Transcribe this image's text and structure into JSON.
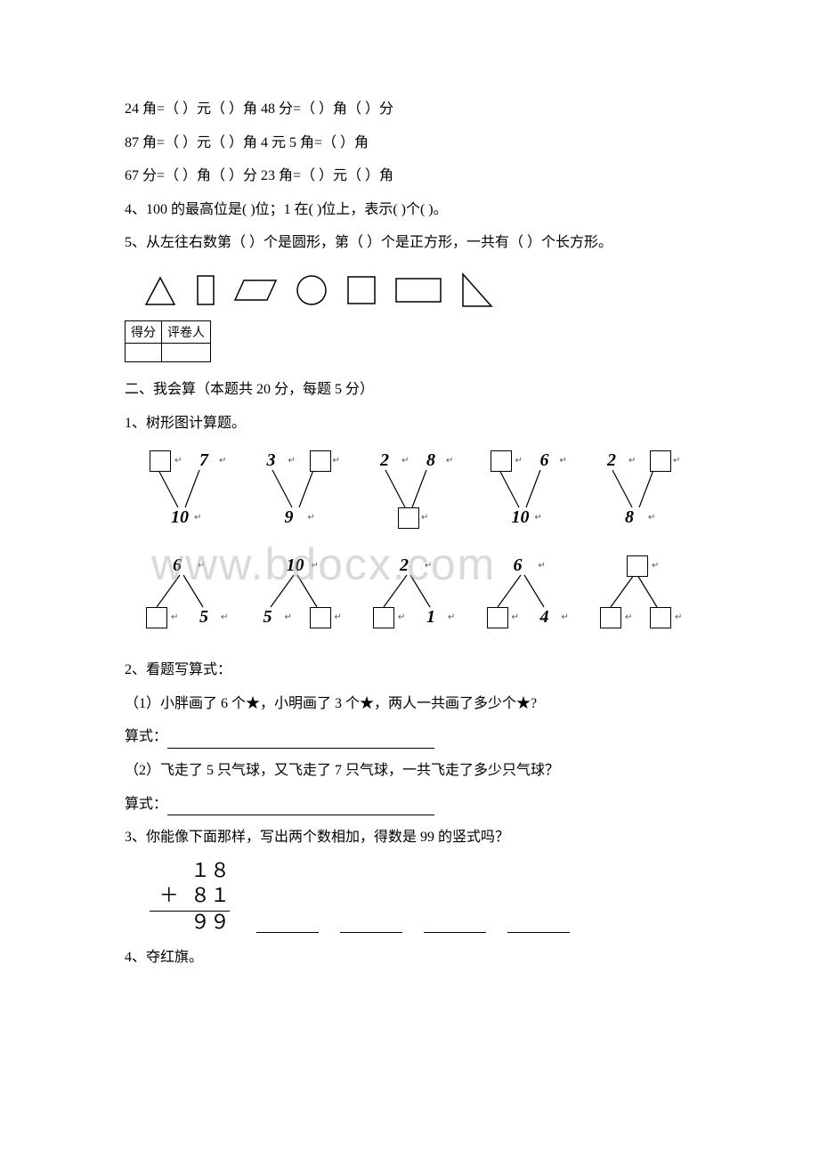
{
  "q3a": "24 角=（ ）元（ ）角 48 分=（ ）角（ ）分",
  "q3b": "87 角=（ ）元（ ）角 4 元 5 角=（ ）角",
  "q3c": "67 分=（ ）角（ ）分 23 角=（ ）元（ ）角",
  "q4": "4、100 的最高位是( )位；1 在( )位上，表示( )个( )。",
  "q5": "5、从左往右数第（ ）个是圆形，第（ ）个是正方形，一共有（ ）个长方形。",
  "score_labels": {
    "left": "得分",
    "right": "评卷人"
  },
  "section2_title": " 二、我会算（本题共 20 分，每题 5 分）",
  "s2q1": "1、树形图计算题。",
  "trees_row1": [
    {
      "tl": null,
      "tr": "7",
      "b": "10",
      "box_tl": true
    },
    {
      "tl": "3",
      "tr": null,
      "b": "9",
      "box_tr": true
    },
    {
      "tl": "2",
      "tr": "8",
      "b": null,
      "box_b": true
    },
    {
      "tl": null,
      "tr": "6",
      "b": "10",
      "box_tl": true
    },
    {
      "tl": "2",
      "tr": null,
      "b": "8",
      "box_tr": true
    }
  ],
  "trees_row2": [
    {
      "t": "6",
      "bl": null,
      "br": "5",
      "box_bl": true
    },
    {
      "t": "10",
      "bl": "5",
      "br": null,
      "box_br": true
    },
    {
      "t": "2",
      "bl": null,
      "br": "1",
      "box_bl": true
    },
    {
      "t": "6",
      "bl": null,
      "br": "4",
      "box_bl": true
    },
    {
      "t": null,
      "bl": null,
      "br": null,
      "box_t": true,
      "box_bl": true,
      "box_br": true
    }
  ],
  "s2q2": "2、看题写算式：",
  "s2q2_1": "（1）小胖画了 6 个★，小明画了 3 个★，两人一共画了多少个★?",
  "s2q2_eq": " 算式：",
  "s2q2_2": "（2）飞走了 5 只气球，又飞走了 7 只气球，一共飞走了多少只气球？",
  "s2q3": "3、你能像下面那样，写出两个数相加，得数是 99 的竖式吗？",
  "vcalc": {
    "l1": "１８",
    "l2": "＋ ８１",
    "l3": "９９"
  },
  "s2q4": "4、夺红旗。",
  "watermark": "www.bdocx.com",
  "shape_stroke": "#000000",
  "colors": {
    "bg": "#ffffff",
    "text": "#000000",
    "wm": "rgba(180,180,180,0.5)"
  }
}
